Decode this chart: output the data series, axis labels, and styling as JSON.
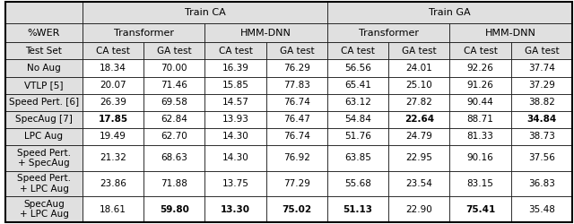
{
  "top_headers": [
    "Train CA",
    "Train GA"
  ],
  "model_headers": [
    "Transformer",
    "HMM-DNN",
    "Transformer",
    "HMM-DNN"
  ],
  "col_headers": [
    "%WER",
    "CA test",
    "GA test",
    "CA test",
    "GA test",
    "CA test",
    "GA test",
    "CA test",
    "GA test"
  ],
  "test_set_label": "Test Set",
  "rows": [
    {
      "label": "No Aug",
      "values": [
        "18.34",
        "70.00",
        "16.39",
        "76.29",
        "56.56",
        "24.01",
        "92.26",
        "37.74"
      ],
      "bold": [
        false,
        false,
        false,
        false,
        false,
        false,
        false,
        false
      ]
    },
    {
      "label": "VTLP [5]",
      "values": [
        "20.07",
        "71.46",
        "15.85",
        "77.83",
        "65.41",
        "25.10",
        "91.26",
        "37.29"
      ],
      "bold": [
        false,
        false,
        false,
        false,
        false,
        false,
        false,
        false
      ]
    },
    {
      "label": "Speed Pert. [6]",
      "values": [
        "26.39",
        "69.58",
        "14.57",
        "76.74",
        "63.12",
        "27.82",
        "90.44",
        "38.82"
      ],
      "bold": [
        false,
        false,
        false,
        false,
        false,
        false,
        false,
        false
      ]
    },
    {
      "label": "SpecAug [7]",
      "values": [
        "17.85",
        "62.84",
        "13.93",
        "76.47",
        "54.84",
        "22.64",
        "88.71",
        "34.84"
      ],
      "bold": [
        true,
        false,
        false,
        false,
        false,
        true,
        false,
        true
      ]
    },
    {
      "label": "LPC Aug",
      "values": [
        "19.49",
        "62.70",
        "14.30",
        "76.74",
        "51.76",
        "24.79",
        "81.33",
        "38.73"
      ],
      "bold": [
        false,
        false,
        false,
        false,
        false,
        false,
        false,
        false
      ]
    },
    {
      "label": "Speed Pert.\n+ SpecAug",
      "values": [
        "21.32",
        "68.63",
        "14.30",
        "76.92",
        "63.85",
        "22.95",
        "90.16",
        "37.56"
      ],
      "bold": [
        false,
        false,
        false,
        false,
        false,
        false,
        false,
        false
      ]
    },
    {
      "label": "Speed Pert.\n+ LPC Aug",
      "values": [
        "23.86",
        "71.88",
        "13.75",
        "77.29",
        "55.68",
        "23.54",
        "83.15",
        "36.83"
      ],
      "bold": [
        false,
        false,
        false,
        false,
        false,
        false,
        false,
        false
      ]
    },
    {
      "label": "SpecAug\n+ LPC Aug",
      "values": [
        "18.61",
        "59.80",
        "13.30",
        "75.02",
        "51.13",
        "22.90",
        "75.41",
        "35.48"
      ],
      "bold": [
        false,
        true,
        true,
        true,
        true,
        false,
        true,
        false
      ]
    }
  ],
  "bg_header": "#e0e0e0",
  "bg_white": "#ffffff",
  "bg_gray": "#d8d8d8",
  "border_color": "#000000",
  "font_size": 7.5,
  "header_font_size": 8.0
}
